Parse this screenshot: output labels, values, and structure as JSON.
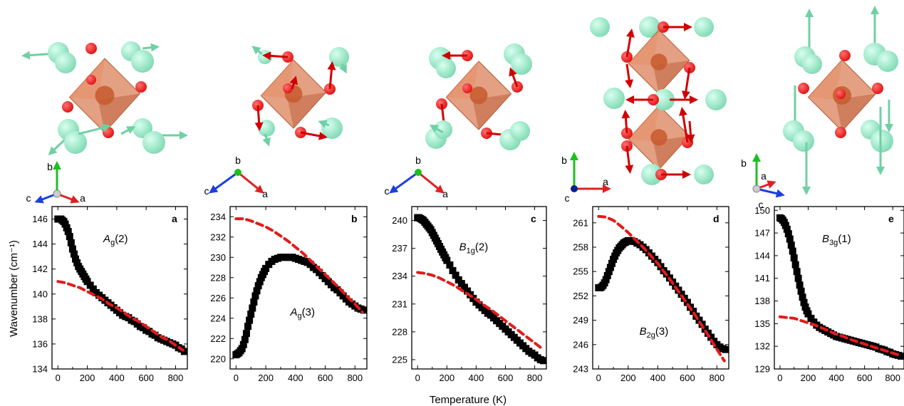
{
  "figure": {
    "ylabel": "Wavenumber (cm⁻¹)",
    "xlabel": "Temperature (K)"
  },
  "colors": {
    "atom_green": "#7fd9b3",
    "atom_red": "#e01010",
    "octahedron": "#d9774f",
    "arrow_green": "#6fd0a4",
    "arrow_red": "#d00000",
    "fit_red": "#e21b1b",
    "data_black": "#000000",
    "axis_a": "#e02020",
    "axis_b": "#1fbf1f",
    "axis_c": "#1b3fe0"
  },
  "panels": [
    {
      "letter": "a",
      "mode_main": "A",
      "mode_sub": "g",
      "mode_num": "(2)",
      "axes_labels": [
        "b",
        "c",
        "a"
      ]
    },
    {
      "letter": "b",
      "mode_main": "A",
      "mode_sub": "g",
      "mode_num": "(3)",
      "axes_labels": [
        "b",
        "c",
        "a"
      ]
    },
    {
      "letter": "c",
      "mode_main": "B",
      "mode_sub": "1g",
      "mode_num": "(2)",
      "axes_labels": [
        "b",
        "c",
        "a"
      ]
    },
    {
      "letter": "d",
      "mode_main": "B",
      "mode_sub": "2g",
      "mode_num": "(3)",
      "axes_labels": [
        "b",
        "a",
        "c"
      ]
    },
    {
      "letter": "e",
      "mode_main": "B",
      "mode_sub": "3g",
      "mode_num": "(1)",
      "axes_labels": [
        "b",
        "a",
        "c"
      ]
    }
  ],
  "chart_data": [
    {
      "type": "scatter",
      "panel": "a",
      "xlabel": "Temperature (K)",
      "ylabel": "Wavenumber (cm⁻¹)",
      "xlim": [
        -40,
        880
      ],
      "ylim": [
        134,
        147
      ],
      "xticks": [
        0,
        200,
        400,
        600,
        800
      ],
      "yticks": [
        134,
        136,
        138,
        140,
        142,
        144,
        146
      ],
      "measured": {
        "x": [
          0,
          10,
          20,
          30,
          40,
          50,
          60,
          70,
          80,
          90,
          100,
          110,
          120,
          130,
          140,
          150,
          160,
          170,
          180,
          190,
          200,
          220,
          240,
          260,
          280,
          300,
          320,
          340,
          360,
          380,
          400,
          420,
          440,
          460,
          480,
          500,
          520,
          540,
          560,
          580,
          600,
          620,
          640,
          660,
          680,
          700,
          720,
          740,
          760,
          780,
          800,
          820,
          840,
          860
        ],
        "y": [
          146.0,
          146.0,
          146.0,
          145.9,
          145.8,
          145.6,
          145.3,
          145.0,
          144.6,
          144.1,
          143.6,
          143.2,
          142.8,
          142.5,
          142.2,
          142.0,
          141.8,
          141.6,
          141.4,
          141.2,
          141.0,
          140.7,
          140.4,
          140.1,
          139.9,
          139.7,
          139.5,
          139.3,
          139.1,
          138.9,
          138.7,
          138.5,
          138.3,
          138.2,
          138.1,
          137.9,
          137.8,
          137.6,
          137.4,
          137.3,
          137.1,
          137.0,
          136.8,
          136.7,
          136.5,
          136.4,
          136.3,
          136.2,
          136.1,
          136.0,
          135.9,
          135.7,
          135.6,
          135.4
        ]
      },
      "fit": {
        "x": [
          0,
          50,
          100,
          150,
          200,
          250,
          300,
          350,
          400,
          450,
          500,
          550,
          600,
          650,
          700,
          750,
          800,
          850
        ],
        "y": [
          141.0,
          140.9,
          140.7,
          140.5,
          140.2,
          139.9,
          139.6,
          139.2,
          138.9,
          138.5,
          138.1,
          137.8,
          137.4,
          137.0,
          136.6,
          136.3,
          135.9,
          135.5
        ]
      }
    },
    {
      "type": "scatter",
      "panel": "b",
      "xlabel": "Temperature (K)",
      "xlim": [
        -40,
        880
      ],
      "ylim": [
        219,
        235
      ],
      "xticks": [
        0,
        200,
        400,
        600,
        800
      ],
      "yticks": [
        220,
        222,
        224,
        226,
        228,
        230,
        232,
        234
      ],
      "measured": {
        "x": [
          0,
          10,
          20,
          30,
          40,
          50,
          60,
          70,
          80,
          90,
          100,
          110,
          120,
          130,
          140,
          150,
          160,
          170,
          180,
          190,
          200,
          220,
          240,
          260,
          280,
          300,
          320,
          340,
          360,
          380,
          400,
          420,
          440,
          460,
          480,
          500,
          520,
          540,
          560,
          580,
          600,
          620,
          640,
          660,
          680,
          700,
          720,
          740,
          760,
          780,
          800,
          820,
          840,
          860
        ],
        "y": [
          220.4,
          220.5,
          220.6,
          220.8,
          221.0,
          221.4,
          221.9,
          222.5,
          223.2,
          223.8,
          224.4,
          225.0,
          225.6,
          226.2,
          226.7,
          227.2,
          227.6,
          228.0,
          228.3,
          228.6,
          228.9,
          229.3,
          229.6,
          229.8,
          229.9,
          230.0,
          230.0,
          230.0,
          230.0,
          230.0,
          229.9,
          229.8,
          229.7,
          229.6,
          229.5,
          229.3,
          229.0,
          228.8,
          228.5,
          228.2,
          227.9,
          227.6,
          227.3,
          227.0,
          226.8,
          226.5,
          226.2,
          225.9,
          225.6,
          225.4,
          225.2,
          225.0,
          224.9,
          224.8
        ]
      },
      "fit": {
        "x": [
          0,
          50,
          100,
          150,
          200,
          250,
          300,
          350,
          400,
          450,
          500,
          550,
          600,
          650,
          700,
          750,
          800,
          850
        ],
        "y": [
          233.8,
          233.8,
          233.6,
          233.3,
          233.0,
          232.6,
          232.1,
          231.6,
          231.0,
          230.4,
          229.7,
          229.0,
          228.3,
          227.6,
          226.9,
          226.1,
          225.4,
          224.6
        ]
      }
    },
    {
      "type": "scatter",
      "panel": "c",
      "xlabel": "Temperature (K)",
      "xlim": [
        -40,
        880
      ],
      "ylim": [
        224,
        241.5
      ],
      "xticks": [
        0,
        200,
        400,
        600,
        800
      ],
      "yticks": [
        225,
        228,
        231,
        234,
        237,
        240
      ],
      "measured": {
        "x": [
          0,
          10,
          20,
          30,
          40,
          50,
          60,
          70,
          80,
          90,
          100,
          110,
          120,
          130,
          140,
          150,
          160,
          170,
          180,
          190,
          200,
          220,
          240,
          260,
          280,
          300,
          320,
          340,
          360,
          380,
          400,
          420,
          440,
          460,
          480,
          500,
          520,
          540,
          560,
          580,
          600,
          620,
          640,
          660,
          680,
          700,
          720,
          740,
          760,
          780,
          800,
          820,
          840,
          860
        ],
        "y": [
          240.3,
          240.3,
          240.2,
          240.1,
          240.0,
          239.8,
          239.6,
          239.4,
          239.2,
          239.0,
          238.7,
          238.4,
          238.1,
          237.8,
          237.5,
          237.2,
          236.9,
          236.6,
          236.3,
          236.0,
          235.7,
          235.2,
          234.6,
          234.1,
          233.6,
          233.2,
          232.8,
          232.4,
          232.0,
          231.6,
          231.2,
          230.9,
          230.6,
          230.3,
          230.0,
          229.8,
          229.5,
          229.2,
          228.9,
          228.6,
          228.3,
          228.0,
          227.7,
          227.4,
          227.1,
          226.8,
          226.5,
          226.2,
          225.9,
          225.7,
          225.5,
          225.2,
          225.0,
          224.9
        ]
      },
      "fit": {
        "x": [
          0,
          50,
          100,
          150,
          200,
          250,
          300,
          350,
          400,
          450,
          500,
          550,
          600,
          650,
          700,
          750,
          800,
          850
        ],
        "y": [
          234.4,
          234.3,
          234.1,
          233.8,
          233.4,
          233.0,
          232.5,
          232.0,
          231.5,
          230.9,
          230.4,
          229.8,
          229.2,
          228.6,
          228.0,
          227.4,
          226.8,
          226.2
        ]
      }
    },
    {
      "type": "scatter",
      "panel": "d",
      "xlabel": "Temperature (K)",
      "xlim": [
        -40,
        880
      ],
      "ylim": [
        243,
        263
      ],
      "xticks": [
        0,
        200,
        400,
        600,
        800
      ],
      "yticks": [
        243,
        246,
        249,
        252,
        255,
        258,
        261
      ],
      "measured": {
        "x": [
          0,
          10,
          20,
          30,
          40,
          50,
          60,
          70,
          80,
          90,
          100,
          110,
          120,
          130,
          140,
          150,
          160,
          170,
          180,
          190,
          200,
          220,
          240,
          260,
          280,
          300,
          320,
          340,
          360,
          380,
          400,
          420,
          440,
          460,
          480,
          500,
          520,
          540,
          560,
          580,
          600,
          620,
          640,
          660,
          680,
          700,
          720,
          740,
          760,
          780,
          800,
          820,
          840,
          860
        ],
        "y": [
          253.0,
          253.0,
          253.1,
          253.3,
          253.6,
          254.0,
          254.5,
          255.0,
          255.5,
          256.0,
          256.5,
          256.9,
          257.3,
          257.6,
          257.9,
          258.1,
          258.3,
          258.5,
          258.6,
          258.7,
          258.8,
          258.8,
          258.7,
          258.5,
          258.3,
          258.0,
          257.7,
          257.3,
          256.9,
          256.5,
          256.1,
          255.6,
          255.1,
          254.7,
          254.2,
          253.7,
          253.2,
          252.7,
          252.2,
          251.7,
          251.2,
          250.6,
          250.1,
          249.5,
          249.0,
          248.5,
          247.9,
          247.4,
          246.9,
          246.4,
          246.0,
          245.7,
          245.5,
          245.4
        ]
      },
      "fit": {
        "x": [
          0,
          50,
          100,
          150,
          200,
          250,
          300,
          350,
          400,
          450,
          500,
          550,
          600,
          650,
          700,
          750,
          800,
          850
        ],
        "y": [
          261.8,
          261.7,
          261.3,
          260.6,
          259.8,
          258.9,
          258.0,
          257.0,
          256.0,
          254.8,
          253.6,
          252.3,
          251.0,
          249.7,
          248.3,
          246.9,
          245.4,
          244.0
        ]
      }
    },
    {
      "type": "scatter",
      "panel": "e",
      "xlabel": "Temperature (K)",
      "xlim": [
        -40,
        880
      ],
      "ylim": [
        129,
        150.5
      ],
      "xticks": [
        0,
        200,
        400,
        600,
        800
      ],
      "yticks": [
        129,
        132,
        135,
        138,
        141,
        144,
        147,
        150
      ],
      "measured": {
        "x": [
          0,
          10,
          20,
          30,
          40,
          50,
          60,
          70,
          80,
          90,
          100,
          110,
          120,
          130,
          140,
          150,
          160,
          170,
          180,
          190,
          200,
          220,
          240,
          260,
          280,
          300,
          320,
          340,
          360,
          380,
          400,
          420,
          440,
          460,
          480,
          500,
          520,
          540,
          560,
          580,
          600,
          620,
          640,
          660,
          680,
          700,
          720,
          740,
          760,
          780,
          800,
          820,
          840,
          860
        ],
        "y": [
          149.0,
          148.9,
          148.7,
          148.4,
          148.0,
          147.5,
          146.9,
          146.2,
          145.4,
          144.6,
          143.7,
          142.8,
          141.9,
          141.0,
          140.1,
          139.3,
          138.5,
          137.8,
          137.2,
          136.7,
          136.3,
          135.7,
          135.2,
          134.8,
          134.5,
          134.3,
          134.1,
          133.9,
          133.7,
          133.5,
          133.3,
          133.2,
          133.1,
          133.0,
          132.9,
          132.8,
          132.7,
          132.6,
          132.5,
          132.4,
          132.3,
          132.2,
          132.1,
          132.0,
          131.9,
          131.7,
          131.6,
          131.5,
          131.3,
          131.2,
          131.0,
          130.9,
          130.8,
          130.7
        ]
      },
      "fit": {
        "x": [
          0,
          50,
          100,
          150,
          200,
          250,
          300,
          350,
          400,
          450,
          500,
          550,
          600,
          650,
          700,
          750,
          800,
          850
        ],
        "y": [
          135.9,
          135.8,
          135.7,
          135.4,
          135.1,
          134.8,
          134.4,
          134.0,
          133.6,
          133.3,
          132.9,
          132.6,
          132.3,
          132.0,
          131.7,
          131.4,
          131.1,
          130.8
        ]
      }
    }
  ]
}
